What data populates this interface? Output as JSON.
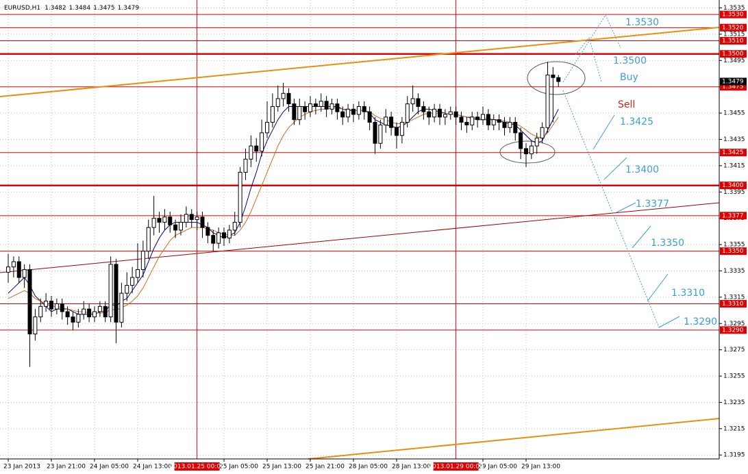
{
  "chart_data": {
    "type": "candlestick",
    "symbol": "EURUSD,H1",
    "ylim": [
      1.3192,
      1.3541
    ],
    "yticks": [
      1.3535,
      1.3515,
      1.3495,
      1.3475,
      1.3455,
      1.3435,
      1.3415,
      1.3395,
      1.3375,
      1.3355,
      1.3335,
      1.3315,
      1.3295,
      1.3275,
      1.3255,
      1.3235,
      1.3215,
      1.3195
    ],
    "grid": true,
    "bull_color": "#ffffff",
    "bear_color": "#000000",
    "categories": [
      "23 Jan 2013",
      null,
      null,
      null,
      null,
      null,
      null,
      null,
      "23 Jan 21:00",
      null,
      null,
      null,
      null,
      null,
      null,
      null,
      "24 Jan 05:00",
      null,
      null,
      null,
      null,
      null,
      null,
      null,
      "24 Jan 13:00",
      null,
      null,
      null,
      null,
      null,
      null,
      null,
      null,
      null,
      null,
      null,
      null,
      null,
      null,
      null,
      "25 Jan 05:00",
      null,
      null,
      null,
      null,
      null,
      null,
      null,
      "25 Jan 13:00",
      null,
      null,
      null,
      null,
      null,
      null,
      null,
      "25 Jan 21:00",
      null,
      null,
      null,
      null,
      null,
      null,
      null,
      "28 Jan 05:00",
      null,
      null,
      null,
      null,
      null,
      null,
      null,
      "28 Jan 13:00",
      null,
      null,
      null,
      null,
      null,
      null,
      null,
      null,
      null,
      null,
      null,
      null,
      null,
      null,
      null,
      "29 Jan 05:00",
      null,
      null,
      null,
      null,
      null,
      null,
      null,
      "29 Jan 13:00",
      null,
      null,
      null,
      null,
      null,
      null
    ],
    "open": [
      1.3334,
      1.3338,
      1.3342,
      1.333,
      1.3336,
      1.3287,
      1.33,
      1.3308,
      1.3312,
      1.3306,
      1.331,
      1.3304,
      1.33,
      1.3296,
      1.3302,
      1.3306,
      1.33,
      1.3304,
      1.3308,
      1.33,
      1.334,
      1.3296,
      1.3318,
      1.3324,
      1.333,
      1.3336,
      1.335,
      1.3368,
      1.3375,
      1.3372,
      1.3376,
      1.337,
      1.3366,
      1.3372,
      1.3378,
      1.3374,
      1.3376,
      1.3368,
      1.3362,
      1.3356,
      1.3364,
      1.336,
      1.3366,
      1.3372,
      1.341,
      1.342,
      1.343,
      1.3426,
      1.344,
      1.3448,
      1.346,
      1.3466,
      1.347,
      1.3462,
      1.345,
      1.346,
      1.3456,
      1.3462,
      1.346,
      1.3464,
      1.3458,
      1.3462,
      1.3456,
      1.3452,
      1.3458,
      1.3454,
      1.346,
      1.3456,
      1.3448,
      1.3432,
      1.3446,
      1.3452,
      1.3444,
      1.3438,
      1.3448,
      1.3462,
      1.3466,
      1.346,
      1.3456,
      1.3452,
      1.3458,
      1.3452,
      1.3454,
      1.3456,
      1.3452,
      1.3448,
      1.3446,
      1.3452,
      1.345,
      1.3454,
      1.3446,
      1.345,
      1.3448,
      1.3444,
      1.3448,
      1.344,
      1.3428,
      1.3424,
      1.343,
      1.3436,
      1.3444,
      1.3484,
      1.3482
    ],
    "high": [
      1.3348,
      1.3346,
      1.3346,
      1.334,
      1.334,
      1.3306,
      1.3314,
      1.3318,
      1.3316,
      1.3314,
      1.3314,
      1.3308,
      1.3304,
      1.3306,
      1.3312,
      1.331,
      1.3308,
      1.3312,
      1.3312,
      1.3346,
      1.3344,
      1.3326,
      1.3334,
      1.3338,
      1.3356,
      1.3358,
      1.3374,
      1.3392,
      1.338,
      1.3382,
      1.338,
      1.3374,
      1.3378,
      1.3384,
      1.3382,
      1.338,
      1.338,
      1.3372,
      1.3366,
      1.3368,
      1.3368,
      1.337,
      1.338,
      1.3414,
      1.3428,
      1.3438,
      1.3436,
      1.345,
      1.3464,
      1.347,
      1.3476,
      1.3478,
      1.3474,
      1.3466,
      1.3466,
      1.3464,
      1.3468,
      1.3466,
      1.347,
      1.3468,
      1.3466,
      1.3466,
      1.346,
      1.3462,
      1.3462,
      1.3464,
      1.3464,
      1.346,
      1.3452,
      1.345,
      1.3458,
      1.3456,
      1.3448,
      1.3452,
      1.3468,
      1.3476,
      1.347,
      1.3464,
      1.346,
      1.3462,
      1.3462,
      1.3458,
      1.346,
      1.346,
      1.3456,
      1.3452,
      1.3456,
      1.3456,
      1.346,
      1.3458,
      1.3454,
      1.3454,
      1.3452,
      1.3452,
      1.3452,
      1.3444,
      1.3432,
      1.3434,
      1.344,
      1.3448,
      1.3494,
      1.349,
      1.3484
    ],
    "low": [
      1.3326,
      1.333,
      1.3326,
      1.3322,
      1.3262,
      1.3282,
      1.3296,
      1.3304,
      1.33,
      1.3302,
      1.3298,
      1.3294,
      1.329,
      1.3292,
      1.3298,
      1.3296,
      1.3296,
      1.33,
      1.3296,
      1.3296,
      1.328,
      1.3292,
      1.3312,
      1.3318,
      1.3326,
      1.333,
      1.3344,
      1.3362,
      1.3364,
      1.3366,
      1.3364,
      1.336,
      1.3362,
      1.3368,
      1.3368,
      1.3366,
      1.336,
      1.3356,
      1.335,
      1.3352,
      1.3354,
      1.3356,
      1.3362,
      1.3368,
      1.3404,
      1.3414,
      1.3418,
      1.3422,
      1.3436,
      1.3444,
      1.3456,
      1.346,
      1.3456,
      1.3446,
      1.3446,
      1.345,
      1.3452,
      1.3454,
      1.3456,
      1.3452,
      1.3454,
      1.345,
      1.3446,
      1.3448,
      1.3448,
      1.345,
      1.345,
      1.3442,
      1.3424,
      1.3428,
      1.344,
      1.3438,
      1.3428,
      1.3432,
      1.3444,
      1.3456,
      1.3454,
      1.345,
      1.3446,
      1.3448,
      1.3446,
      1.3446,
      1.345,
      1.3446,
      1.3442,
      1.344,
      1.3442,
      1.3444,
      1.3446,
      1.3442,
      1.3442,
      1.3442,
      1.3438,
      1.344,
      1.3434,
      1.342,
      1.3414,
      1.342,
      1.3424,
      1.3432,
      1.344,
      1.3448,
      1.3475
    ],
    "close": [
      1.3338,
      1.3342,
      1.333,
      1.3336,
      1.3287,
      1.33,
      1.3308,
      1.3312,
      1.3306,
      1.331,
      1.3304,
      1.33,
      1.3296,
      1.3302,
      1.3306,
      1.33,
      1.3304,
      1.3308,
      1.33,
      1.334,
      1.3296,
      1.3318,
      1.3324,
      1.333,
      1.3336,
      1.335,
      1.3368,
      1.3375,
      1.3372,
      1.3376,
      1.337,
      1.3366,
      1.3372,
      1.3378,
      1.3374,
      1.3376,
      1.3368,
      1.3362,
      1.3356,
      1.3364,
      1.336,
      1.3366,
      1.3372,
      1.341,
      1.342,
      1.343,
      1.3426,
      1.344,
      1.3448,
      1.346,
      1.3466,
      1.347,
      1.3462,
      1.345,
      1.346,
      1.3456,
      1.3462,
      1.346,
      1.3464,
      1.3458,
      1.3462,
      1.3456,
      1.3452,
      1.3458,
      1.3454,
      1.346,
      1.3456,
      1.3448,
      1.3432,
      1.3446,
      1.3452,
      1.3444,
      1.3438,
      1.3448,
      1.3462,
      1.3466,
      1.346,
      1.3456,
      1.3452,
      1.3458,
      1.3452,
      1.3454,
      1.3456,
      1.3452,
      1.3448,
      1.3446,
      1.3452,
      1.345,
      1.3454,
      1.3446,
      1.345,
      1.3448,
      1.3444,
      1.3448,
      1.344,
      1.3428,
      1.3424,
      1.343,
      1.3436,
      1.3444,
      1.3484,
      1.3482,
      1.3479
    ],
    "series": [
      {
        "color": "#000080",
        "values": [
          1.3318,
          1.3322,
          1.3326,
          1.333,
          1.3324,
          1.3316,
          1.3312,
          1.3308,
          1.3304,
          1.3306,
          1.3306,
          1.3306,
          1.3304,
          1.3302,
          1.3302,
          1.3302,
          1.3302,
          1.3304,
          1.3304,
          1.331,
          1.3308,
          1.3312,
          1.3314,
          1.332,
          1.3326,
          1.3332,
          1.3342,
          1.3352,
          1.336,
          1.3366,
          1.337,
          1.3372,
          1.3372,
          1.3372,
          1.3372,
          1.3372,
          1.337,
          1.3368,
          1.3364,
          1.3362,
          1.336,
          1.3362,
          1.3364,
          1.3372,
          1.3384,
          1.3398,
          1.341,
          1.3424,
          1.3434,
          1.3442,
          1.345,
          1.3456,
          1.346,
          1.346,
          1.346,
          1.346,
          1.346,
          1.346,
          1.346,
          1.346,
          1.346,
          1.346,
          1.3458,
          1.3457,
          1.3457,
          1.3457,
          1.3457,
          1.3455,
          1.345,
          1.3448,
          1.3446,
          1.3445,
          1.3444,
          1.3445,
          1.3448,
          1.3452,
          1.3456,
          1.3458,
          1.3458,
          1.3457,
          1.3456,
          1.3455,
          1.3454,
          1.3454,
          1.3453,
          1.3452,
          1.3451,
          1.345,
          1.345,
          1.345,
          1.345,
          1.3449,
          1.3448,
          1.3447,
          1.3446,
          1.3442,
          1.3438,
          1.3434,
          1.3432,
          1.3434,
          1.3442,
          1.345,
          1.3458
        ]
      },
      {
        "color": "#d2691e",
        "values": [
          1.3314,
          1.3316,
          1.3318,
          1.332,
          1.3318,
          1.3314,
          1.3312,
          1.331,
          1.3308,
          1.3308,
          1.3307,
          1.3306,
          1.3305,
          1.3304,
          1.3304,
          1.3303,
          1.3303,
          1.3303,
          1.3303,
          1.3306,
          1.3305,
          1.3307,
          1.3309,
          1.3312,
          1.3316,
          1.3322,
          1.333,
          1.3338,
          1.3346,
          1.3352,
          1.3358,
          1.3362,
          1.3364,
          1.3366,
          1.3368,
          1.3368,
          1.3368,
          1.3367,
          1.3366,
          1.3364,
          1.3363,
          1.3362,
          1.3362,
          1.3366,
          1.3372,
          1.338,
          1.339,
          1.34,
          1.341,
          1.342,
          1.343,
          1.3438,
          1.3444,
          1.3448,
          1.3452,
          1.3454,
          1.3456,
          1.3457,
          1.3458,
          1.3458,
          1.3459,
          1.3459,
          1.3458,
          1.3458,
          1.3457,
          1.3457,
          1.3457,
          1.3456,
          1.3453,
          1.3451,
          1.345,
          1.3448,
          1.3447,
          1.3447,
          1.3448,
          1.345,
          1.3452,
          1.3454,
          1.3455,
          1.3455,
          1.3455,
          1.3455,
          1.3454,
          1.3454,
          1.3453,
          1.3452,
          1.3452,
          1.3451,
          1.3451,
          1.3451,
          1.345,
          1.345,
          1.3449,
          1.3448,
          1.3447,
          1.3445,
          1.3442,
          1.3439,
          1.3437,
          1.3436,
          1.344,
          1.3446,
          1.3452
        ]
      }
    ],
    "levels": [
      {
        "value": 1.353,
        "label": "1.3530",
        "bold": false
      },
      {
        "value": 1.352,
        "label": "1.3520",
        "bold": false
      },
      {
        "value": 1.351,
        "label": "1.3510",
        "bold": false
      },
      {
        "value": 1.35,
        "label": "1.3500",
        "bold": true
      },
      {
        "value": 1.3475,
        "label": "1.3475",
        "bold": false
      },
      {
        "value": 1.3425,
        "label": "1.3425",
        "bold": false
      },
      {
        "value": 1.34,
        "label": "1.3400",
        "bold": true
      },
      {
        "value": 1.3377,
        "label": "1.3377",
        "bold": false
      },
      {
        "value": 1.335,
        "label": "1.3350",
        "bold": false
      },
      {
        "value": 1.331,
        "label": "1.3310",
        "bold": false
      },
      {
        "value": 1.329,
        "label": "1.3290",
        "bold": false
      }
    ],
    "level_color": "#e00000",
    "period_lines": [
      {
        "index": 35,
        "label": "2013.01.25 00:00"
      },
      {
        "index": 83,
        "label": "2013.01.29 00:00"
      }
    ],
    "annotations": [
      {
        "text": "1.3530",
        "color": "#3a9fd8"
      },
      {
        "text": "1.3500",
        "color": "#3a9fd8"
      },
      {
        "text": "Buy",
        "color": "#3a9fd8"
      },
      {
        "text": "Sell",
        "color": "#d02020"
      },
      {
        "text": "1.3425",
        "color": "#3a9fd8"
      },
      {
        "text": "1.3400",
        "color": "#3a9fd8"
      },
      {
        "text": "1.3377",
        "color": "#3a9fd8"
      },
      {
        "text": "1.3350",
        "color": "#3a9fd8"
      },
      {
        "text": "1.3310",
        "color": "#3a9fd8"
      },
      {
        "text": "1.3290",
        "color": "#3a9fd8"
      }
    ]
  }
}
